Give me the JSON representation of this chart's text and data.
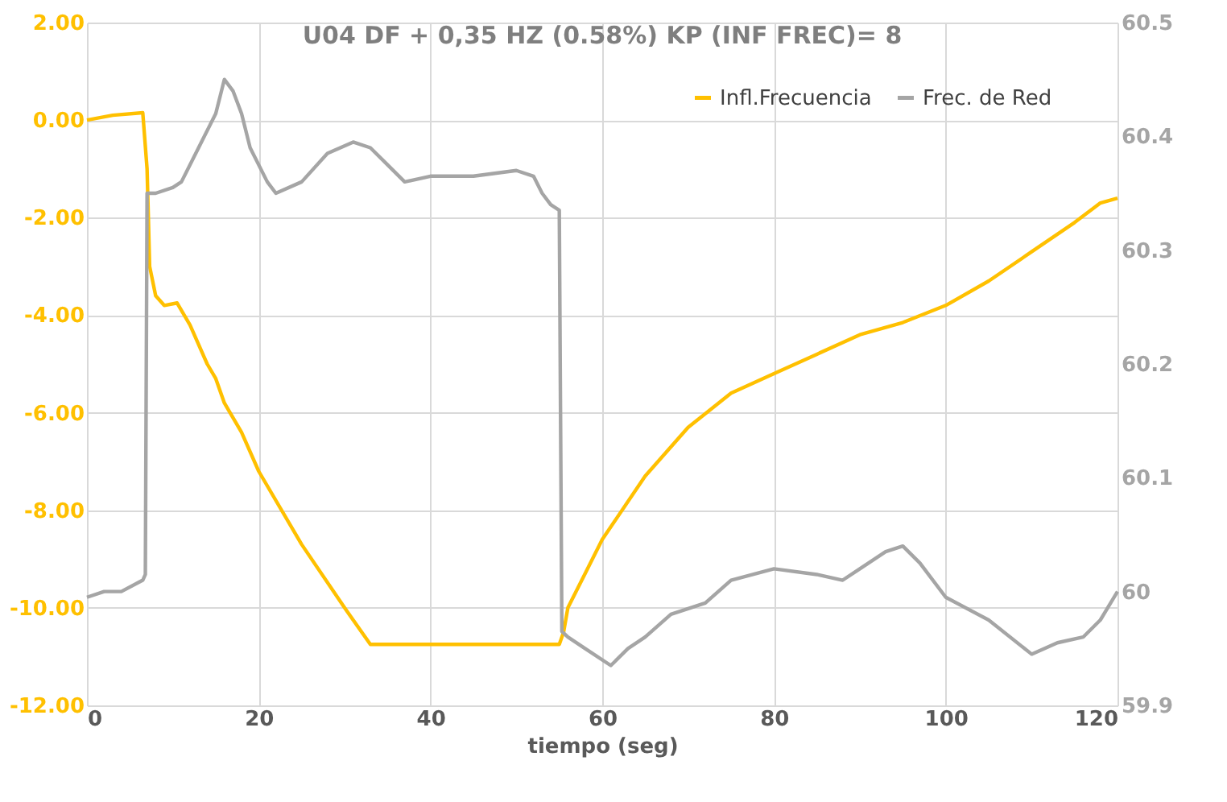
{
  "chart_data": {
    "type": "line",
    "title": "U04 DF + 0,35 HZ (0.58%) KP (INF FREC)= 8",
    "xlabel": "tiempo (seg)",
    "xlim": [
      0,
      120
    ],
    "xticks": [
      0,
      20,
      40,
      60,
      80,
      100,
      120
    ],
    "ylim": [
      -12,
      2
    ],
    "yticks": [
      {
        "value": 2,
        "label": "2.00"
      },
      {
        "value": 0,
        "label": "0.00"
      },
      {
        "value": -2,
        "label": "-2.00"
      },
      {
        "value": -4,
        "label": "-4.00"
      },
      {
        "value": -6,
        "label": "-6.00"
      },
      {
        "value": -8,
        "label": "-8.00"
      },
      {
        "value": -10,
        "label": "-10.00"
      },
      {
        "value": -12,
        "label": "-12.00"
      }
    ],
    "y2lim": [
      59.9,
      60.5
    ],
    "y2ticks": [
      59.9,
      60,
      60.1,
      60.2,
      60.3,
      60.4,
      60.5
    ],
    "grid": true,
    "legend": "top right",
    "marker": "none",
    "line_style": "solid",
    "series": [
      {
        "name": "Infl.Frecuencia",
        "color": "#ffc000",
        "x": [
          0,
          3,
          6.5,
          7,
          7.3,
          8,
          9,
          10.5,
          12,
          14,
          15,
          16,
          18,
          20,
          25,
          30,
          33,
          55,
          55.5,
          56,
          58,
          60,
          65,
          70,
          75,
          80,
          85,
          90,
          95,
          100,
          105,
          110,
          115,
          118,
          120
        ],
        "values": [
          0,
          0.1,
          0.15,
          -1,
          -3,
          -3.6,
          -3.8,
          -3.75,
          -4.2,
          -5,
          -5.3,
          -5.8,
          -6.4,
          -7.2,
          -8.7,
          -10,
          -10.75,
          -10.75,
          -10.5,
          -10,
          -9.3,
          -8.6,
          -7.3,
          -6.3,
          -5.6,
          -5.2,
          -4.8,
          -4.4,
          -4.15,
          -3.8,
          -3.3,
          -2.7,
          -2.1,
          -1.7,
          -1.6
        ]
      },
      {
        "name": "Frec. de Red",
        "color": "#a5a5a5",
        "axis": "y2",
        "x": [
          0,
          2,
          4,
          6.5,
          6.8,
          7,
          8,
          10,
          11,
          13,
          15,
          16,
          17,
          18,
          19,
          21,
          22,
          25,
          28,
          31,
          33,
          35,
          37,
          40,
          45,
          50,
          52,
          53,
          54,
          55,
          55.3,
          56,
          58,
          61,
          63,
          65,
          68,
          72,
          75,
          80,
          85,
          88,
          90,
          93,
          95,
          97,
          100,
          105,
          110,
          113,
          116,
          118,
          120
        ],
        "values": [
          59.995,
          60,
          60,
          60.01,
          60.015,
          60.35,
          60.35,
          60.355,
          60.36,
          60.39,
          60.42,
          60.45,
          60.44,
          60.42,
          60.39,
          60.36,
          60.35,
          60.36,
          60.385,
          60.395,
          60.39,
          60.375,
          60.36,
          60.365,
          60.365,
          60.37,
          60.365,
          60.35,
          60.34,
          60.335,
          59.965,
          59.96,
          59.95,
          59.935,
          59.95,
          59.96,
          59.98,
          59.99,
          60.01,
          60.02,
          60.015,
          60.01,
          60.02,
          60.035,
          60.04,
          60.025,
          59.995,
          59.975,
          59.945,
          59.955,
          59.96,
          59.975,
          60
        ]
      }
    ]
  }
}
